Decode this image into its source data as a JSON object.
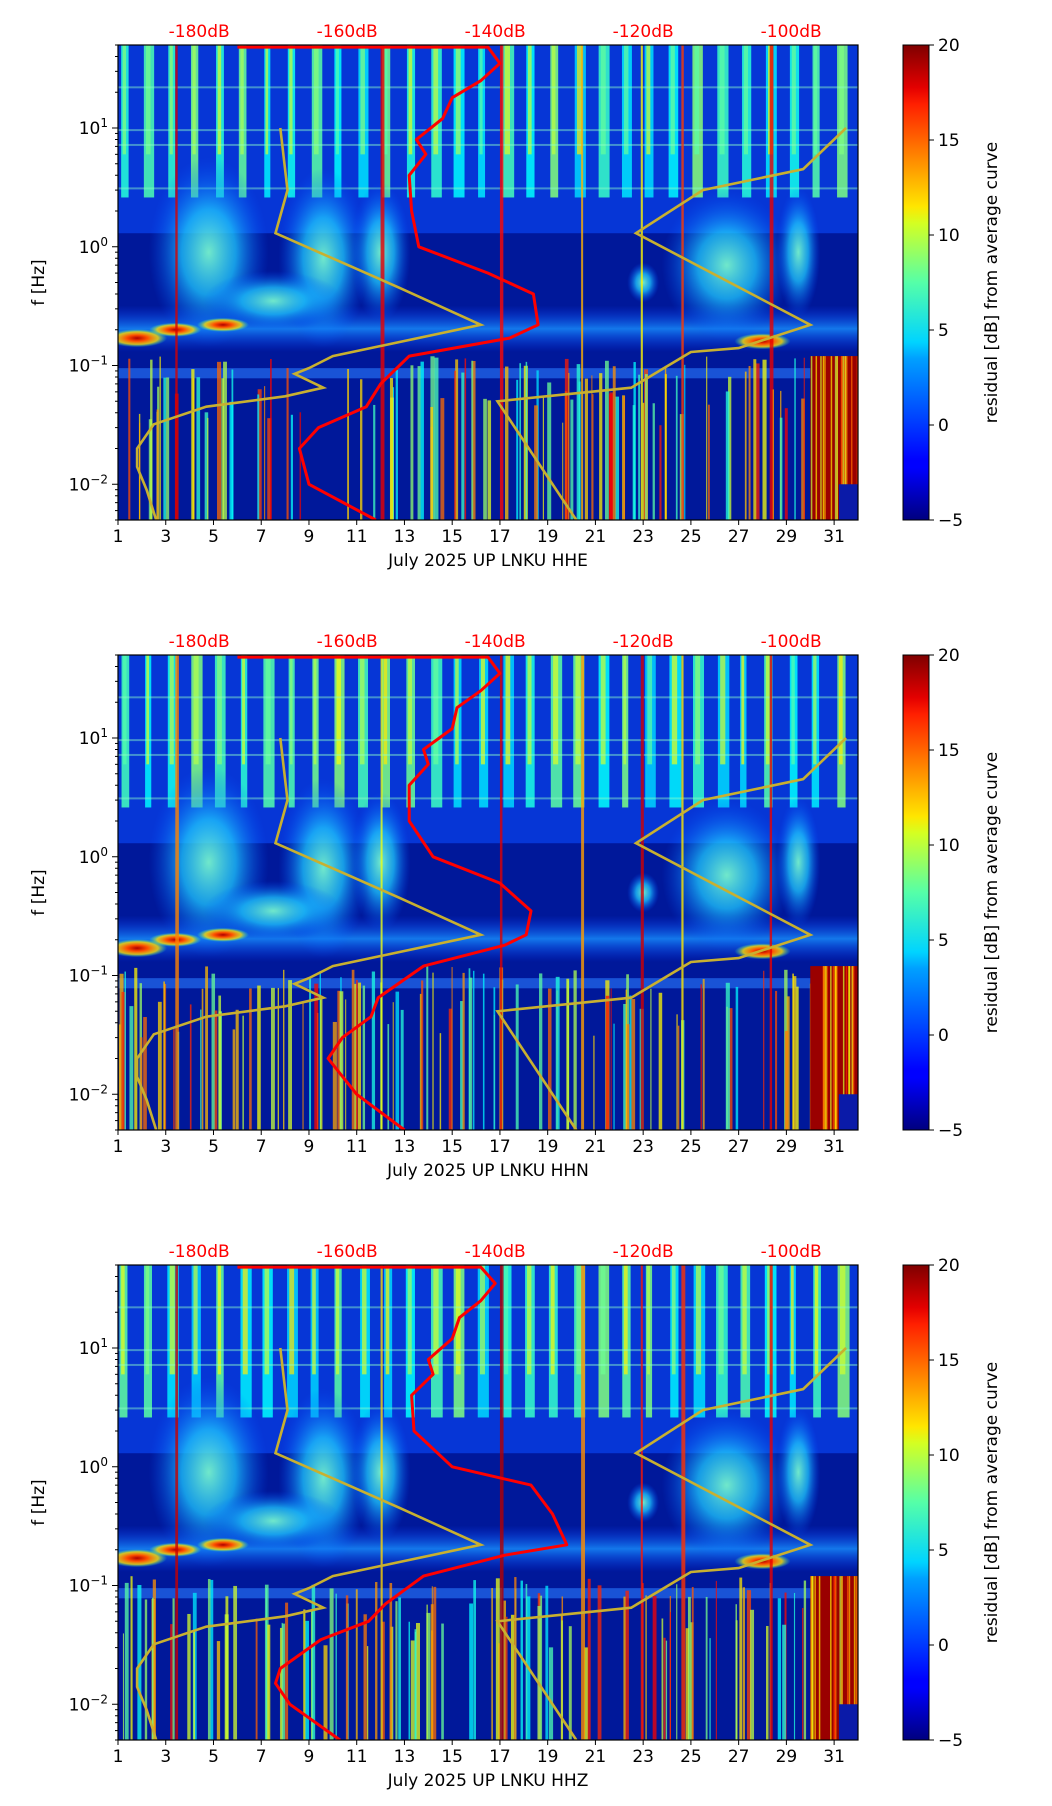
{
  "figure": {
    "colormap": "jet",
    "curve_colors": {
      "psd_median": "#ff0000",
      "noise_model": "#c8b030"
    }
  },
  "chart_data": [
    {
      "type": "heatmap",
      "panel": "HHE",
      "title": "",
      "xlabel": "July 2025 UP LNKU  HHE",
      "ylabel": "f [Hz]",
      "xticks": [
        1,
        3,
        5,
        7,
        9,
        11,
        13,
        15,
        17,
        19,
        21,
        23,
        25,
        27,
        29,
        31
      ],
      "xlim": [
        1,
        32
      ],
      "yscale": "log",
      "ylim": [
        0.005,
        50
      ],
      "yticks": [
        "10^-2",
        "10^-1",
        "10^0",
        "10^1"
      ],
      "top_axis_labels": [
        "-180dB",
        "-160dB",
        "-140dB",
        "-120dB",
        "-100dB"
      ],
      "colorbar": {
        "label": "residual [dB] from average curve",
        "min": -5,
        "max": 20,
        "ticks": [
          -5,
          0,
          5,
          10,
          15,
          20
        ]
      },
      "psd_curve": {
        "color": "#ff0000",
        "points": [
          [
            11.8,
            0.005
          ],
          [
            9.0,
            0.01
          ],
          [
            8.6,
            0.02
          ],
          [
            9.4,
            0.03
          ],
          [
            11.4,
            0.045
          ],
          [
            12.0,
            0.07
          ],
          [
            13.2,
            0.12
          ],
          [
            17.4,
            0.17
          ],
          [
            18.6,
            0.22
          ],
          [
            18.4,
            0.4
          ],
          [
            16.5,
            0.6
          ],
          [
            13.6,
            1.0
          ],
          [
            13.3,
            2.0
          ],
          [
            13.2,
            4.0
          ],
          [
            13.9,
            6.0
          ],
          [
            13.5,
            8.0
          ],
          [
            14.6,
            12.0
          ],
          [
            15.0,
            18.0
          ],
          [
            16.2,
            25.0
          ],
          [
            17.0,
            35.0
          ],
          [
            16.5,
            48.0
          ],
          [
            6.0,
            48.0
          ]
        ]
      },
      "noise_model": {
        "color": "#c8b030",
        "low": [
          [
            2.6,
            0.005
          ],
          [
            2.2,
            0.009
          ],
          [
            1.8,
            0.014
          ],
          [
            1.8,
            0.02
          ],
          [
            2.5,
            0.032
          ],
          [
            4.7,
            0.045
          ],
          [
            8.0,
            0.055
          ],
          [
            9.6,
            0.065
          ],
          [
            8.4,
            0.085
          ],
          [
            9.0,
            0.095
          ],
          [
            10.0,
            0.12
          ],
          [
            16.2,
            0.22
          ],
          [
            12.8,
            0.45
          ],
          [
            7.6,
            1.3
          ],
          [
            8.1,
            3.0
          ],
          [
            7.8,
            10.0
          ]
        ],
        "high": [
          [
            20.2,
            0.005
          ],
          [
            16.9,
            0.05
          ],
          [
            22.5,
            0.065
          ],
          [
            25.0,
            0.13
          ],
          [
            27.0,
            0.14
          ],
          [
            30.0,
            0.22
          ],
          [
            22.7,
            1.3
          ],
          [
            25.5,
            3.0
          ],
          [
            29.7,
            4.5
          ],
          [
            31.5,
            10.0
          ]
        ]
      }
    },
    {
      "type": "heatmap",
      "panel": "HHN",
      "title": "",
      "xlabel": "July 2025 UP LNKU  HHN",
      "ylabel": "f [Hz]",
      "xticks": [
        1,
        3,
        5,
        7,
        9,
        11,
        13,
        15,
        17,
        19,
        21,
        23,
        25,
        27,
        29,
        31
      ],
      "xlim": [
        1,
        32
      ],
      "yscale": "log",
      "ylim": [
        0.005,
        50
      ],
      "yticks": [
        "10^-2",
        "10^-1",
        "10^0",
        "10^1"
      ],
      "top_axis_labels": [
        "-180dB",
        "-160dB",
        "-140dB",
        "-120dB",
        "-100dB"
      ],
      "colorbar": {
        "label": "residual [dB] from average curve",
        "min": -5,
        "max": 20,
        "ticks": [
          -5,
          0,
          5,
          10,
          15,
          20
        ]
      },
      "psd_curve": {
        "color": "#ff0000",
        "points": [
          [
            13.0,
            0.005
          ],
          [
            11.0,
            0.01
          ],
          [
            9.8,
            0.02
          ],
          [
            10.4,
            0.03
          ],
          [
            11.6,
            0.045
          ],
          [
            11.9,
            0.065
          ],
          [
            13.8,
            0.12
          ],
          [
            17.2,
            0.18
          ],
          [
            18.1,
            0.22
          ],
          [
            18.3,
            0.35
          ],
          [
            17.0,
            0.6
          ],
          [
            14.2,
            1.0
          ],
          [
            13.2,
            2.0
          ],
          [
            13.2,
            4.0
          ],
          [
            14.0,
            6.0
          ],
          [
            13.8,
            8.0
          ],
          [
            15.0,
            12.0
          ],
          [
            15.2,
            18.0
          ],
          [
            16.2,
            25.0
          ],
          [
            17.0,
            35.0
          ],
          [
            16.5,
            48.0
          ],
          [
            6.0,
            48.0
          ]
        ]
      },
      "noise_model": {
        "color": "#c8b030",
        "low": [
          [
            2.6,
            0.005
          ],
          [
            2.2,
            0.009
          ],
          [
            1.8,
            0.014
          ],
          [
            1.8,
            0.02
          ],
          [
            2.5,
            0.032
          ],
          [
            4.7,
            0.045
          ],
          [
            8.0,
            0.055
          ],
          [
            9.6,
            0.065
          ],
          [
            8.4,
            0.085
          ],
          [
            9.0,
            0.095
          ],
          [
            10.0,
            0.12
          ],
          [
            16.2,
            0.22
          ],
          [
            12.8,
            0.45
          ],
          [
            7.6,
            1.3
          ],
          [
            8.1,
            3.0
          ],
          [
            7.8,
            10.0
          ]
        ],
        "high": [
          [
            20.2,
            0.005
          ],
          [
            16.9,
            0.05
          ],
          [
            22.5,
            0.065
          ],
          [
            25.0,
            0.13
          ],
          [
            27.0,
            0.14
          ],
          [
            30.0,
            0.22
          ],
          [
            22.7,
            1.3
          ],
          [
            25.5,
            3.0
          ],
          [
            29.7,
            4.5
          ],
          [
            31.5,
            10.0
          ]
        ]
      }
    },
    {
      "type": "heatmap",
      "panel": "HHZ",
      "title": "",
      "xlabel": "July 2025 UP LNKU  HHZ",
      "ylabel": "f [Hz]",
      "xticks": [
        1,
        3,
        5,
        7,
        9,
        11,
        13,
        15,
        17,
        19,
        21,
        23,
        25,
        27,
        29,
        31
      ],
      "xlim": [
        1,
        32
      ],
      "yscale": "log",
      "ylim": [
        0.005,
        50
      ],
      "yticks": [
        "10^-2",
        "10^-1",
        "10^0",
        "10^1"
      ],
      "top_axis_labels": [
        "-180dB",
        "-160dB",
        "-140dB",
        "-120dB",
        "-100dB"
      ],
      "colorbar": {
        "label": "residual [dB] from average curve",
        "min": -5,
        "max": 20,
        "ticks": [
          -5,
          0,
          5,
          10,
          15,
          20
        ]
      },
      "psd_curve": {
        "color": "#ff0000",
        "points": [
          [
            10.3,
            0.005
          ],
          [
            8.2,
            0.01
          ],
          [
            7.6,
            0.015
          ],
          [
            7.8,
            0.02
          ],
          [
            9.5,
            0.035
          ],
          [
            11.5,
            0.05
          ],
          [
            12.2,
            0.07
          ],
          [
            13.8,
            0.12
          ],
          [
            17.2,
            0.18
          ],
          [
            19.8,
            0.22
          ],
          [
            19.2,
            0.4
          ],
          [
            18.3,
            0.7
          ],
          [
            15.0,
            1.0
          ],
          [
            13.4,
            2.0
          ],
          [
            13.3,
            4.0
          ],
          [
            14.2,
            6.0
          ],
          [
            14.0,
            8.0
          ],
          [
            15.0,
            12.0
          ],
          [
            15.3,
            18.0
          ],
          [
            16.2,
            25.0
          ],
          [
            16.8,
            35.0
          ],
          [
            16.2,
            48.0
          ],
          [
            6.0,
            48.0
          ]
        ]
      },
      "noise_model": {
        "color": "#c8b030",
        "low": [
          [
            2.6,
            0.005
          ],
          [
            2.2,
            0.009
          ],
          [
            1.8,
            0.014
          ],
          [
            1.8,
            0.02
          ],
          [
            2.5,
            0.032
          ],
          [
            4.7,
            0.045
          ],
          [
            8.0,
            0.055
          ],
          [
            9.6,
            0.065
          ],
          [
            8.4,
            0.085
          ],
          [
            9.0,
            0.095
          ],
          [
            10.0,
            0.12
          ],
          [
            16.2,
            0.22
          ],
          [
            12.8,
            0.45
          ],
          [
            7.6,
            1.3
          ],
          [
            8.1,
            3.0
          ],
          [
            7.8,
            10.0
          ]
        ],
        "high": [
          [
            20.2,
            0.005
          ],
          [
            16.9,
            0.05
          ],
          [
            22.5,
            0.065
          ],
          [
            25.0,
            0.13
          ],
          [
            27.0,
            0.14
          ],
          [
            30.0,
            0.22
          ],
          [
            22.7,
            1.3
          ],
          [
            25.5,
            3.0
          ],
          [
            29.7,
            4.5
          ],
          [
            31.5,
            10.0
          ]
        ]
      }
    }
  ]
}
